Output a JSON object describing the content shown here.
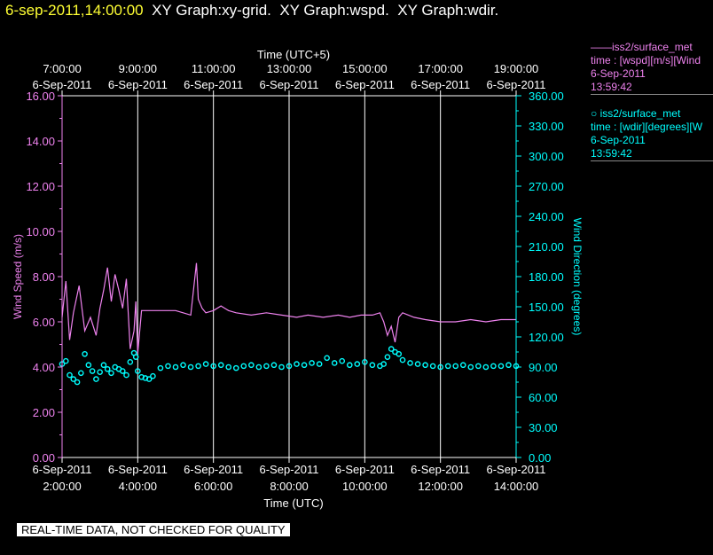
{
  "header": {
    "timestamp": "6-sep-2011,14:00:00",
    "titles": "XY Graph:xy-grid.  XY Graph:wspd.  XY Graph:wdir."
  },
  "legend": [
    {
      "line1": "——iss2/surface_met",
      "line2": "time : [wspd][m/s][Wind",
      "line3": "6-Sep-2011",
      "line4": "13:59:42",
      "color": "#ee82ee"
    },
    {
      "line1": "○ iss2/surface_met",
      "line2": "time : [wdir][degrees][W",
      "line3": "6-Sep-2011",
      "line4": "13:59:42",
      "color": "#00ffff"
    }
  ],
  "footer": "REAL-TIME DATA, NOT CHECKED FOR QUALITY",
  "colors": {
    "wspd": "#ee82ee",
    "wdir": "#00ffff",
    "header_time": "#ffff33",
    "grid": "#ffffff"
  },
  "chart_data": {
    "type": "line",
    "top_axis_title": "Time (UTC+5)",
    "xlabel": "Time (UTC)",
    "ylabel": "Wind Speed (m/s)",
    "y2label": "Wind Direction (degrees)",
    "x_range_utc_hours": [
      2,
      14
    ],
    "ylim": [
      0,
      16
    ],
    "y2lim": [
      0,
      360
    ],
    "grid": "vertical lines at every 2 hours",
    "y_ticks": [
      "0.00",
      "2.00",
      "4.00",
      "6.00",
      "8.00",
      "10.00",
      "12.00",
      "14.00",
      "16.00"
    ],
    "y2_ticks": [
      "0.00",
      "30.00",
      "60.00",
      "90.00",
      "120.00",
      "150.00",
      "180.00",
      "210.00",
      "240.00",
      "270.00",
      "300.00",
      "330.00",
      "360.00"
    ],
    "bottom_ticks": [
      {
        "date": "6-Sep-2011",
        "time": "2:00:00"
      },
      {
        "date": "6-Sep-2011",
        "time": "4:00:00"
      },
      {
        "date": "6-Sep-2011",
        "time": "6:00:00"
      },
      {
        "date": "6-Sep-2011",
        "time": "8:00:00"
      },
      {
        "date": "6-Sep-2011",
        "time": "10:00:00"
      },
      {
        "date": "6-Sep-2011",
        "time": "12:00:00"
      },
      {
        "date": "6-Sep-2011",
        "time": "14:00:00"
      }
    ],
    "top_ticks": [
      {
        "time": "7:00:00",
        "date": "6-Sep-2011"
      },
      {
        "time": "9:00:00",
        "date": "6-Sep-2011"
      },
      {
        "time": "11:00:00",
        "date": "6-Sep-2011"
      },
      {
        "time": "13:00:00",
        "date": "6-Sep-2011"
      },
      {
        "time": "15:00:00",
        "date": "6-Sep-2011"
      },
      {
        "time": "17:00:00",
        "date": "6-Sep-2011"
      },
      {
        "time": "19:00:00",
        "date": "6-Sep-2011"
      }
    ],
    "series": [
      {
        "name": "iss2/surface_met wspd",
        "axis": "left",
        "style": "line",
        "x_utc_hours": [
          2.0,
          2.1,
          2.2,
          2.3,
          2.45,
          2.6,
          2.75,
          2.9,
          3.0,
          3.1,
          3.2,
          3.3,
          3.4,
          3.5,
          3.6,
          3.7,
          3.8,
          3.9,
          3.95,
          4.0,
          4.1,
          4.3,
          4.5,
          4.8,
          5.0,
          5.2,
          5.4,
          5.5,
          5.55,
          5.6,
          5.7,
          5.8,
          6.0,
          6.2,
          6.4,
          6.6,
          7.0,
          7.4,
          7.8,
          8.2,
          8.5,
          8.9,
          9.3,
          9.6,
          9.9,
          10.2,
          10.4,
          10.5,
          10.6,
          10.7,
          10.8,
          10.9,
          11.0,
          11.3,
          11.6,
          12.0,
          12.4,
          12.8,
          13.2,
          13.6,
          14.0
        ],
        "values": [
          6.2,
          7.8,
          5.2,
          6.4,
          7.6,
          5.6,
          6.2,
          5.4,
          6.6,
          7.4,
          8.4,
          6.9,
          8.1,
          7.4,
          6.6,
          7.9,
          4.8,
          5.6,
          6.9,
          4.6,
          6.5,
          6.5,
          6.5,
          6.5,
          6.5,
          6.4,
          6.3,
          7.8,
          8.6,
          7.0,
          6.6,
          6.4,
          6.5,
          6.7,
          6.5,
          6.4,
          6.3,
          6.4,
          6.3,
          6.2,
          6.3,
          6.2,
          6.3,
          6.2,
          6.3,
          6.3,
          6.4,
          6.0,
          5.4,
          5.8,
          5.1,
          6.2,
          6.4,
          6.2,
          6.1,
          6.0,
          6.0,
          6.1,
          6.0,
          6.1,
          6.1
        ]
      },
      {
        "name": "iss2/surface_met wdir",
        "axis": "right",
        "style": "markers",
        "x_utc_hours": [
          2.0,
          2.1,
          2.2,
          2.3,
          2.4,
          2.5,
          2.6,
          2.7,
          2.8,
          2.9,
          3.0,
          3.1,
          3.2,
          3.3,
          3.4,
          3.5,
          3.6,
          3.7,
          3.8,
          3.9,
          3.95,
          4.0,
          4.1,
          4.2,
          4.3,
          4.4,
          4.6,
          4.8,
          5.0,
          5.2,
          5.4,
          5.6,
          5.8,
          6.0,
          6.2,
          6.4,
          6.6,
          6.8,
          7.0,
          7.2,
          7.4,
          7.6,
          7.8,
          8.0,
          8.2,
          8.4,
          8.6,
          8.8,
          9.0,
          9.2,
          9.4,
          9.6,
          9.8,
          10.0,
          10.2,
          10.4,
          10.5,
          10.6,
          10.7,
          10.8,
          10.9,
          11.0,
          11.2,
          11.4,
          11.6,
          11.8,
          12.0,
          12.2,
          12.4,
          12.6,
          12.8,
          13.0,
          13.2,
          13.4,
          13.6,
          13.8,
          14.0
        ],
        "values": [
          93,
          96,
          82,
          78,
          75,
          84,
          103,
          92,
          86,
          78,
          85,
          92,
          88,
          84,
          90,
          88,
          86,
          82,
          95,
          104,
          100,
          86,
          80,
          79,
          78,
          81,
          89,
          91,
          90,
          92,
          90,
          91,
          93,
          91,
          92,
          90,
          89,
          91,
          92,
          90,
          91,
          92,
          90,
          91,
          93,
          92,
          94,
          93,
          99,
          94,
          96,
          92,
          93,
          95,
          92,
          91,
          93,
          100,
          108,
          105,
          103,
          97,
          94,
          93,
          92,
          91,
          90,
          91,
          91,
          92,
          90,
          91,
          90,
          91,
          91,
          92,
          91
        ]
      }
    ]
  }
}
